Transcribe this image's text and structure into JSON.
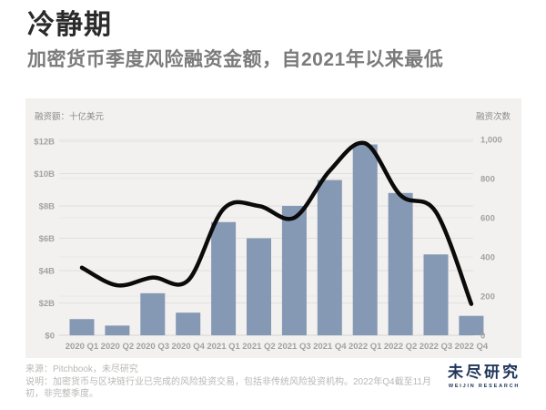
{
  "header": {
    "title": "冷静期",
    "subtitle": "加密货币季度风险融资金额，自2021年以来最低"
  },
  "chart_data": {
    "type": "bar",
    "title": "加密货币季度风险融资金额",
    "categories": [
      "2020 Q1",
      "2020 Q2",
      "2020 Q3",
      "2020 Q4",
      "2021 Q1",
      "2021 Q2",
      "2021 Q3",
      "2021 Q4",
      "2022 Q1",
      "2022 Q2",
      "2022 Q3",
      "2022 Q4"
    ],
    "series": [
      {
        "name": "融资额（十亿美元）",
        "type": "bar",
        "axis": "left",
        "values": [
          1.0,
          0.6,
          2.6,
          1.4,
          7.0,
          6.0,
          8.0,
          9.6,
          11.8,
          8.8,
          5.0,
          1.2
        ]
      },
      {
        "name": "融资次数",
        "type": "line",
        "axis": "right",
        "values": [
          345,
          255,
          295,
          280,
          645,
          660,
          600,
          840,
          980,
          715,
          630,
          160
        ]
      }
    ],
    "left_axis": {
      "label": "融资额：十亿美元",
      "ticks": [
        "$0",
        "$2B",
        "$4B",
        "$6B",
        "$8B",
        "$10B",
        "$12B"
      ],
      "range": [
        0,
        12
      ],
      "step": 2
    },
    "right_axis": {
      "label": "融资次数",
      "ticks": [
        "0",
        "200",
        "400",
        "600",
        "800",
        "1,000"
      ],
      "range": [
        0,
        1000
      ],
      "step": 200
    },
    "grid": true,
    "legend_position": "none",
    "bar_color": "#8598b4",
    "line_color": "#0b0b0b",
    "panel_bg": "#f2f1ef",
    "grid_color_left": "#e1e0de",
    "grid_color_right": "#e9e8e6",
    "baseline_color": "#d6d5d3",
    "tick_color": "#a3a2a0"
  },
  "footer": {
    "source": "来源：Pitchbook，未尽研究",
    "note": "说明：加密货币与区块链行业已完成的风险投资交易，包括非传统风险投资机构。2022年Q4截至11月初，非完整季度。"
  },
  "logo": {
    "name": "未尽研究",
    "sub": "WEIJIN RESEARCH",
    "color": "#20365a"
  }
}
